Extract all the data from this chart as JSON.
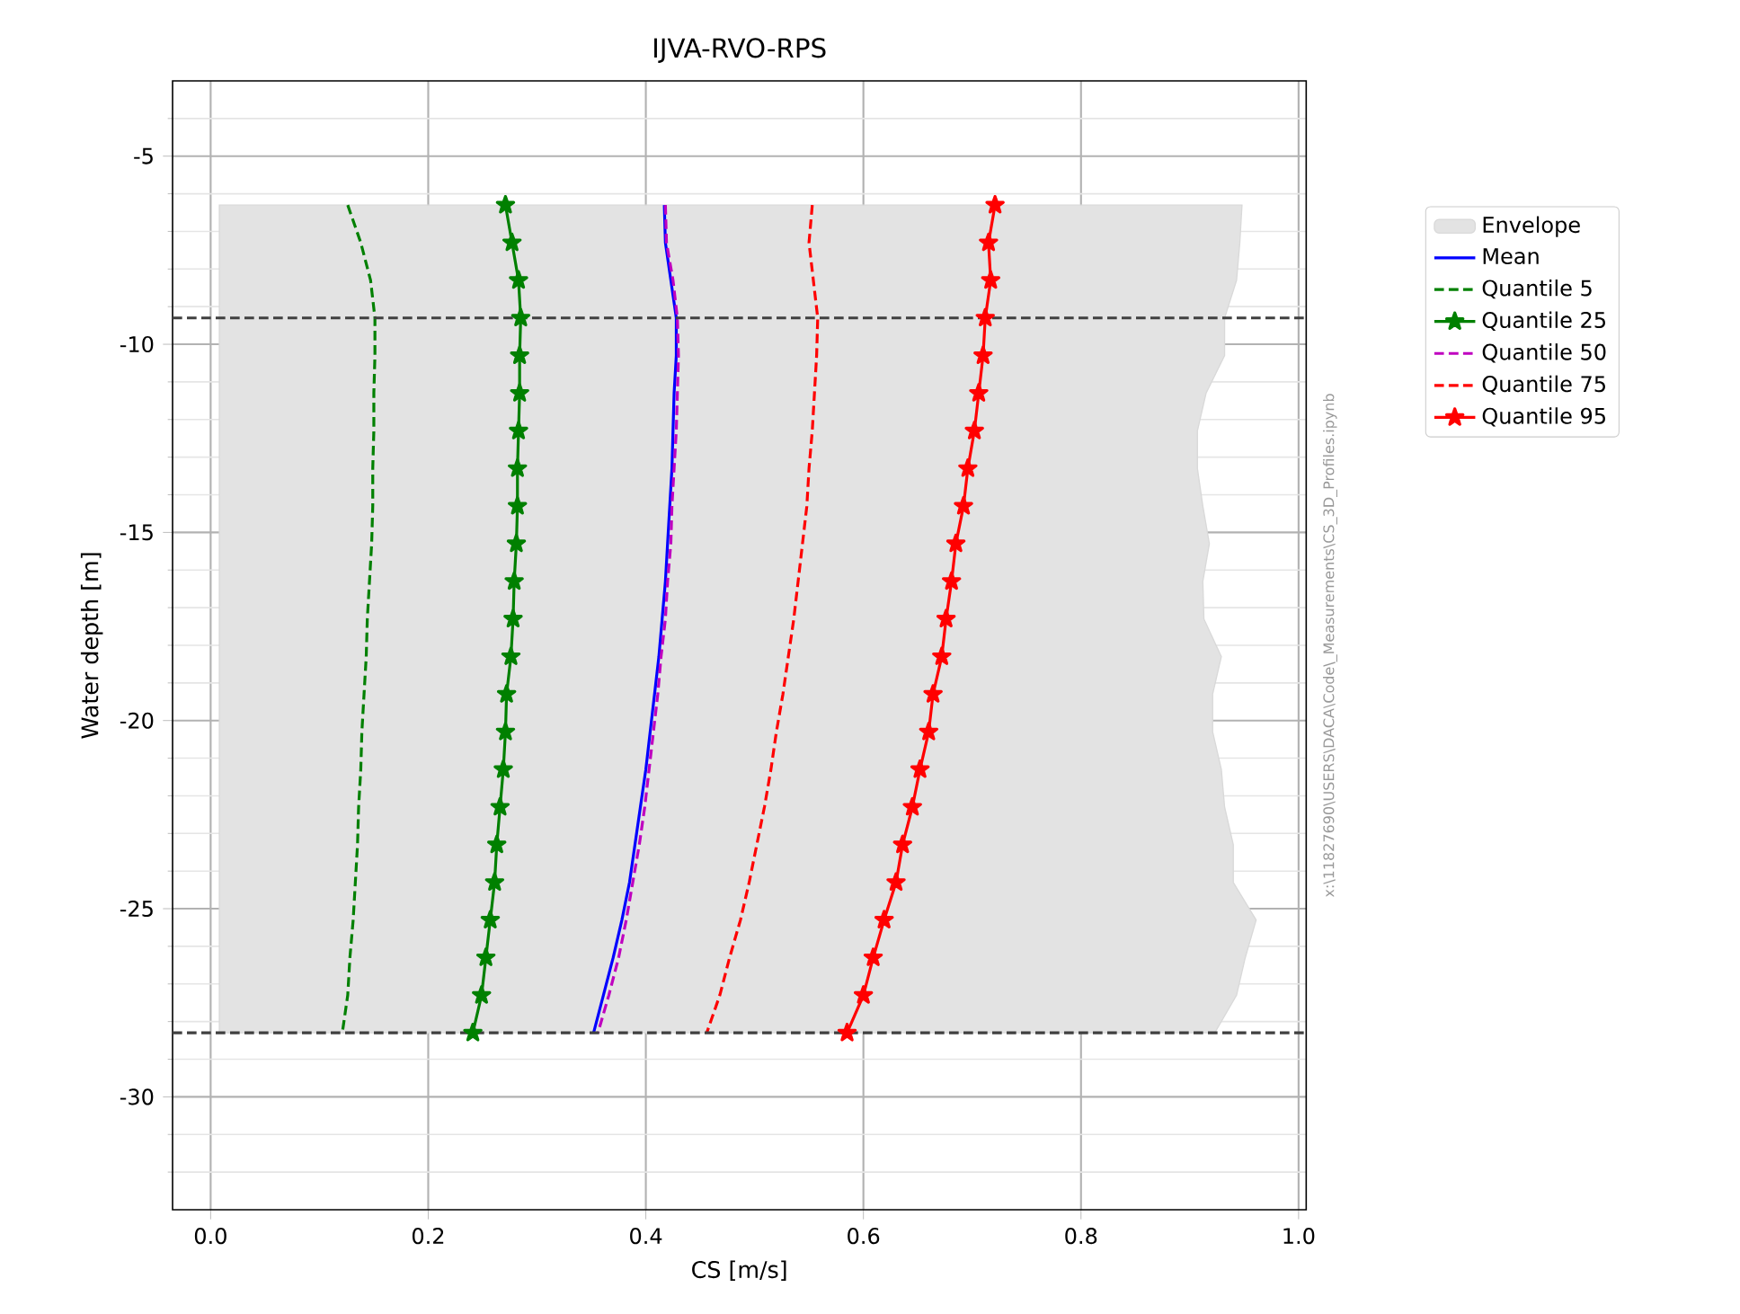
{
  "chart_data": {
    "type": "line",
    "title": "IJVA-RVO-RPS",
    "xlabel": "CS [m/s]",
    "ylabel": "Water depth [m]",
    "xlim": [
      -0.035,
      1.007
    ],
    "ylim": [
      -33,
      -3
    ],
    "xticks": [
      {
        "value": 0,
        "label": "0.0"
      },
      0.2,
      0.4,
      0.6,
      0.8,
      {
        "value": 1,
        "label": "1.0"
      }
    ],
    "yticks": [
      -30,
      -25,
      -20,
      -15,
      -10,
      -5,
      {
        "value": -32,
        "label": null
      },
      {
        "value": -31,
        "label": null
      },
      {
        "value": -29,
        "label": null
      },
      {
        "value": -28,
        "label": null
      },
      {
        "value": -27,
        "label": null
      },
      {
        "value": -26,
        "label": null
      },
      {
        "value": -24,
        "label": null
      },
      {
        "value": -23,
        "label": null
      },
      {
        "value": -22,
        "label": null
      },
      {
        "value": -21,
        "label": null
      },
      {
        "value": -19,
        "label": null
      },
      {
        "value": -18,
        "label": null
      },
      {
        "value": -17,
        "label": null
      },
      {
        "value": -16,
        "label": null
      },
      {
        "value": -14,
        "label": null
      },
      {
        "value": -13,
        "label": null
      },
      {
        "value": -12,
        "label": null
      },
      {
        "value": -11,
        "label": null
      },
      {
        "value": -9,
        "label": null
      },
      {
        "value": -8,
        "label": null
      },
      {
        "value": -7,
        "label": null
      },
      {
        "value": -6,
        "label": null
      },
      {
        "value": -4,
        "label": null
      }
    ],
    "grid": true,
    "legend": "right",
    "ref_lines": [
      {
        "axis": "y",
        "value": -9.3,
        "color": "#404040",
        "line_style": "dashed"
      },
      {
        "axis": "y",
        "value": -28.3,
        "color": "#404040",
        "line_style": "dashed"
      }
    ],
    "annotations": [
      "x:\\11827690\\USERS\\DACA\\Code\\_Measurements\\CS_3D_Profiles.ipynb"
    ],
    "series": [
      {
        "name": "Envelope",
        "type": "area",
        "color": "#e3e3e3",
        "x": [
          0.008,
          0.008,
          0.923,
          0.943,
          0.951,
          0.961,
          0.94,
          0.94,
          0.932,
          0.929,
          0.921,
          0.921,
          0.929,
          0.913,
          0.912,
          0.918,
          0.912,
          0.907,
          0.907,
          0.915,
          0.932,
          0.932,
          0.943,
          0.946,
          0.948
        ],
        "values": [
          -6.3,
          -28.3,
          -28.3,
          -27.3,
          -26.3,
          -25.3,
          -24.3,
          -23.3,
          -22.3,
          -21.3,
          -20.3,
          -19.3,
          -18.3,
          -17.3,
          -16.3,
          -15.3,
          -14.3,
          -13.3,
          -12.3,
          -11.3,
          -10.3,
          -9.3,
          -8.3,
          -7.3,
          -6.3
        ]
      },
      {
        "name": "Mean",
        "color": "#0000ff",
        "line_style": "solid",
        "marker": "none",
        "values": [
          -6.3,
          -7.3,
          -8.3,
          -9.3,
          -10.3,
          -11.3,
          -12.3,
          -13.3,
          -14.3,
          -15.3,
          -16.3,
          -17.3,
          -18.3,
          -19.3,
          -20.3,
          -21.3,
          -22.3,
          -23.3,
          -24.3,
          -25.3,
          -26.3,
          -27.3,
          -28.3
        ],
        "x": [
          0.417,
          0.418,
          0.423,
          0.428,
          0.428,
          0.426,
          0.425,
          0.424,
          0.422,
          0.42,
          0.418,
          0.415,
          0.412,
          0.408,
          0.404,
          0.4,
          0.395,
          0.39,
          0.385,
          0.378,
          0.37,
          0.361,
          0.352
        ]
      },
      {
        "name": "Quantile 5",
        "color": "#008000",
        "line_style": "dashed",
        "marker": "none",
        "values": [
          -6.3,
          -7.3,
          -8.3,
          -9.3,
          -10.3,
          -11.3,
          -12.3,
          -13.3,
          -14.3,
          -15.3,
          -16.3,
          -17.3,
          -18.3,
          -19.3,
          -20.3,
          -21.3,
          -22.3,
          -23.3,
          -24.3,
          -25.3,
          -26.3,
          -27.3,
          -28.3
        ],
        "x": [
          0.126,
          0.138,
          0.147,
          0.151,
          0.151,
          0.15,
          0.15,
          0.149,
          0.149,
          0.148,
          0.146,
          0.144,
          0.143,
          0.141,
          0.139,
          0.138,
          0.136,
          0.135,
          0.133,
          0.131,
          0.128,
          0.126,
          0.121
        ]
      },
      {
        "name": "Quantile 25",
        "color": "#008000",
        "line_style": "solid",
        "marker": "star",
        "values": [
          -6.3,
          -7.3,
          -8.3,
          -9.3,
          -10.3,
          -11.3,
          -12.3,
          -13.3,
          -14.3,
          -15.3,
          -16.3,
          -17.3,
          -18.3,
          -19.3,
          -20.3,
          -21.3,
          -22.3,
          -23.3,
          -24.3,
          -25.3,
          -26.3,
          -27.3,
          -28.3
        ],
        "x": [
          0.271,
          0.277,
          0.283,
          0.285,
          0.284,
          0.284,
          0.283,
          0.282,
          0.282,
          0.281,
          0.279,
          0.278,
          0.276,
          0.272,
          0.271,
          0.269,
          0.266,
          0.263,
          0.261,
          0.257,
          0.253,
          0.249,
          0.241
        ]
      },
      {
        "name": "Quantile 50",
        "color": "#bf00bf",
        "line_style": "dashed",
        "marker": "none",
        "values": [
          -6.3,
          -7.3,
          -8.3,
          -9.3,
          -10.3,
          -11.3,
          -12.3,
          -13.3,
          -14.3,
          -15.3,
          -16.3,
          -17.3,
          -18.3,
          -19.3,
          -20.3,
          -21.3,
          -22.3,
          -23.3,
          -24.3,
          -25.3,
          -26.3,
          -27.3,
          -28.3
        ],
        "x": [
          0.418,
          0.419,
          0.425,
          0.429,
          0.43,
          0.429,
          0.428,
          0.426,
          0.424,
          0.423,
          0.42,
          0.418,
          0.414,
          0.411,
          0.407,
          0.403,
          0.399,
          0.394,
          0.388,
          0.382,
          0.375,
          0.366,
          0.356
        ]
      },
      {
        "name": "Quantile 75",
        "color": "#ff0000",
        "line_style": "dashed",
        "marker": "none",
        "values": [
          -6.3,
          -7.3,
          -8.3,
          -9.3,
          -10.3,
          -11.3,
          -12.3,
          -13.3,
          -14.3,
          -15.3,
          -16.3,
          -17.3,
          -18.3,
          -19.3,
          -20.3,
          -21.3,
          -22.3,
          -23.3,
          -24.3,
          -25.3,
          -26.3,
          -27.3,
          -28.3
        ],
        "x": [
          0.553,
          0.55,
          0.554,
          0.558,
          0.557,
          0.555,
          0.553,
          0.55,
          0.548,
          0.544,
          0.54,
          0.536,
          0.531,
          0.526,
          0.52,
          0.515,
          0.509,
          0.502,
          0.495,
          0.487,
          0.477,
          0.468,
          0.456
        ]
      },
      {
        "name": "Quantile 95",
        "color": "#ff0000",
        "line_style": "solid",
        "marker": "star",
        "values": [
          -6.3,
          -7.3,
          -8.3,
          -9.3,
          -10.3,
          -11.3,
          -12.3,
          -13.3,
          -14.3,
          -15.3,
          -16.3,
          -17.3,
          -18.3,
          -19.3,
          -20.3,
          -21.3,
          -22.3,
          -23.3,
          -24.3,
          -25.3,
          -26.3,
          -27.3,
          -28.3
        ],
        "x": [
          0.721,
          0.715,
          0.717,
          0.712,
          0.71,
          0.706,
          0.702,
          0.696,
          0.692,
          0.685,
          0.681,
          0.676,
          0.672,
          0.664,
          0.66,
          0.652,
          0.645,
          0.636,
          0.63,
          0.619,
          0.609,
          0.6,
          0.585
        ]
      }
    ]
  }
}
